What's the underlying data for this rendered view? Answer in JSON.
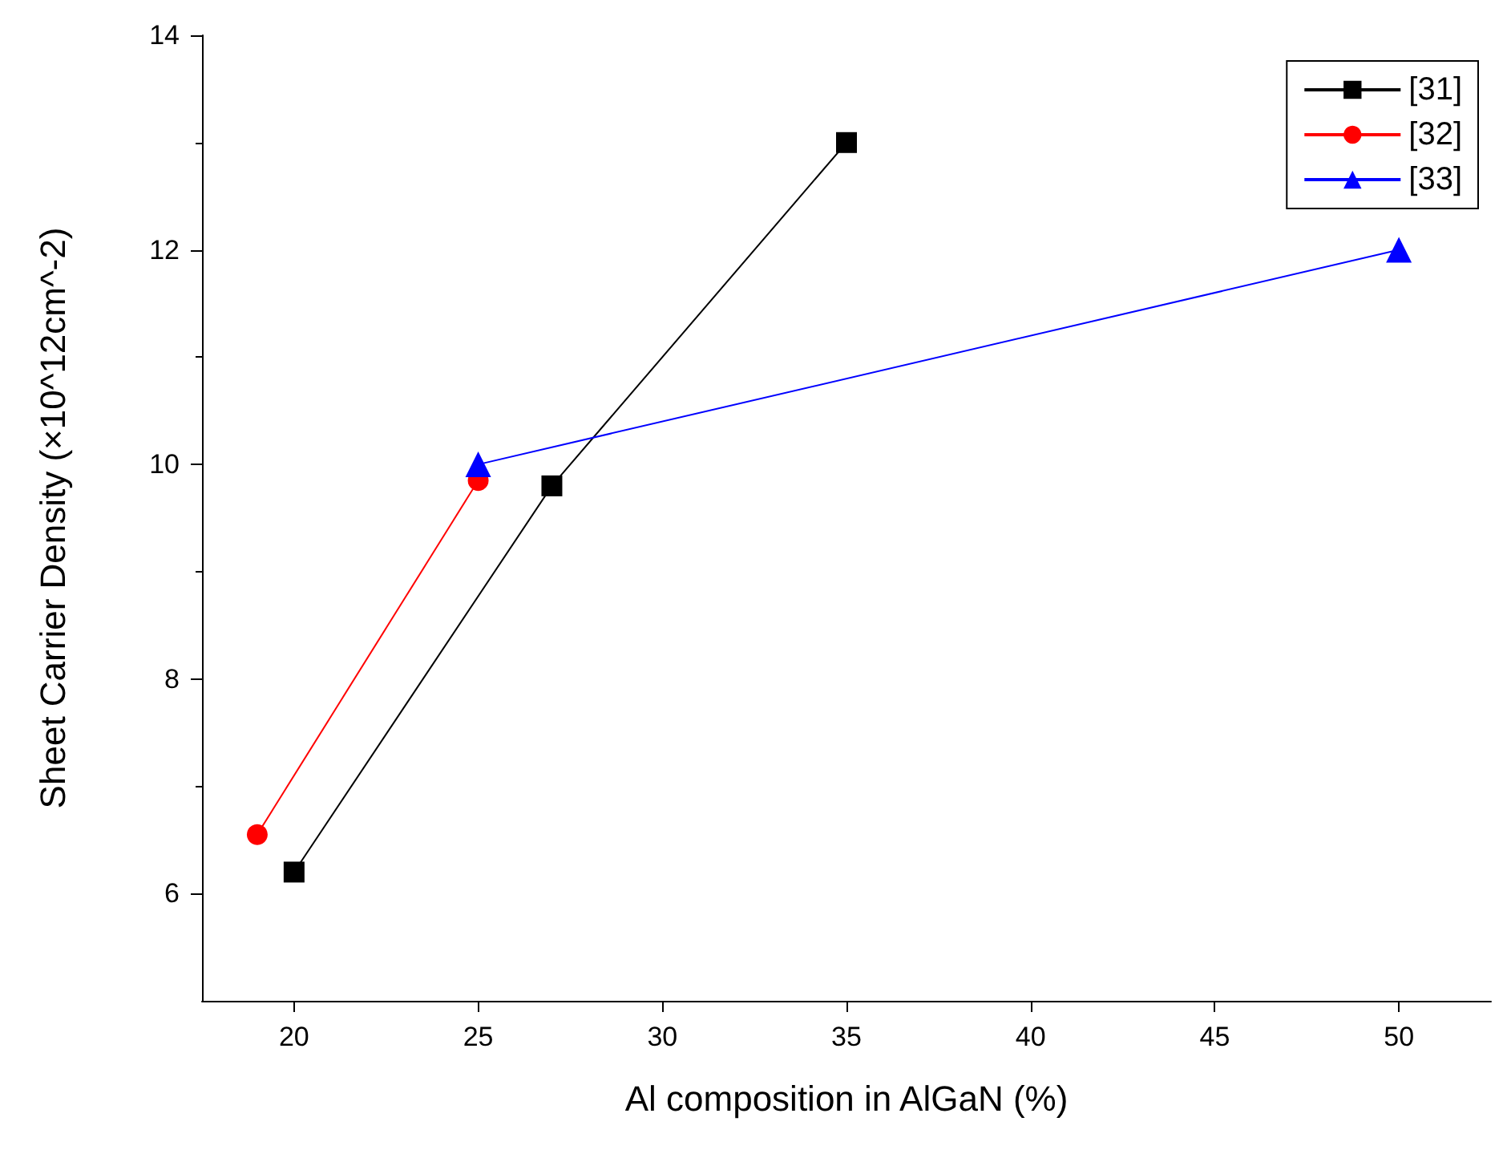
{
  "chart_data": {
    "type": "line",
    "xlabel": "Al composition in AlGaN (%)",
    "ylabel": "Sheet Carrier Density (×10^12cm^-2)",
    "xlim": [
      17.5,
      52.5
    ],
    "xticks": [
      20,
      25,
      30,
      35,
      40,
      45,
      50
    ],
    "ylim": [
      5,
      14
    ],
    "yticks": [
      6,
      8,
      10,
      12,
      14
    ],
    "grid": false,
    "legend": "top right",
    "series": [
      {
        "name": "[31]",
        "color": "#000000",
        "marker": "square",
        "x": [
          20,
          27,
          35
        ],
        "values": [
          6.2,
          9.8,
          13
        ]
      },
      {
        "name": "[32]",
        "color": "#ff0000",
        "marker": "circle",
        "x": [
          19,
          25
        ],
        "values": [
          6.55,
          9.85
        ]
      },
      {
        "name": "[33]",
        "color": "#0000ff",
        "marker": "triangle",
        "x": [
          25,
          50
        ],
        "values": [
          10,
          12
        ]
      }
    ]
  }
}
